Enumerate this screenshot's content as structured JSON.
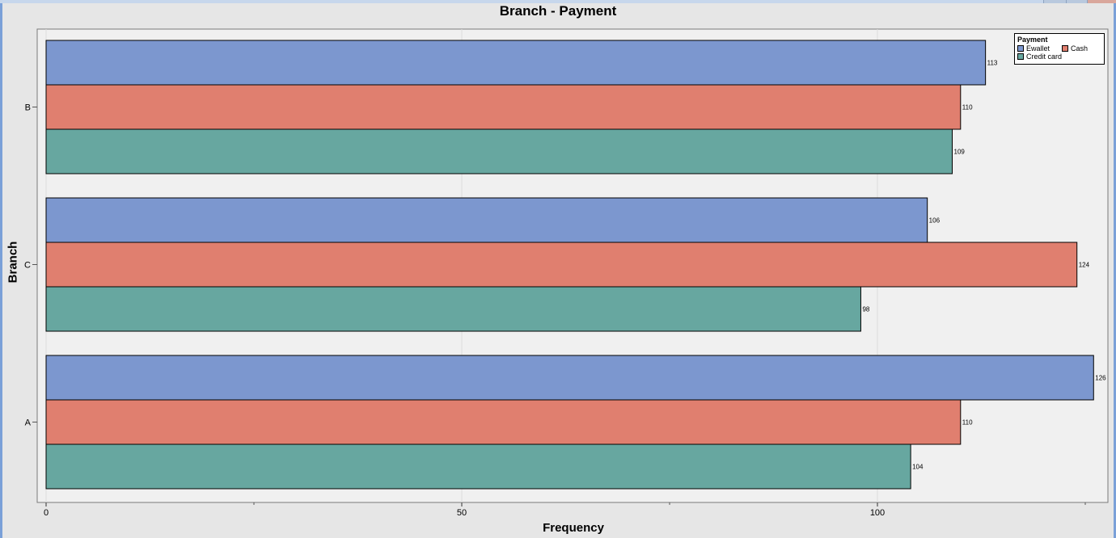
{
  "chart_data": {
    "type": "bar",
    "orientation": "horizontal",
    "title": "Branch - Payment",
    "xlabel": "Frequency",
    "ylabel": "Branch",
    "xlim": [
      0,
      128
    ],
    "x_ticks": [
      0,
      50,
      100
    ],
    "categories": [
      "B",
      "C",
      "A"
    ],
    "series": [
      {
        "name": "Ewallet",
        "color": "#7c97cf",
        "values": [
          113,
          106,
          126
        ]
      },
      {
        "name": "Cash",
        "color": "#e07f6f",
        "values": [
          110,
          124,
          110
        ]
      },
      {
        "name": "Credit card",
        "color": "#67a7a0",
        "values": [
          109,
          98,
          104
        ]
      }
    ],
    "legend": {
      "title": "Payment",
      "position": "top-right"
    },
    "grid": true
  }
}
